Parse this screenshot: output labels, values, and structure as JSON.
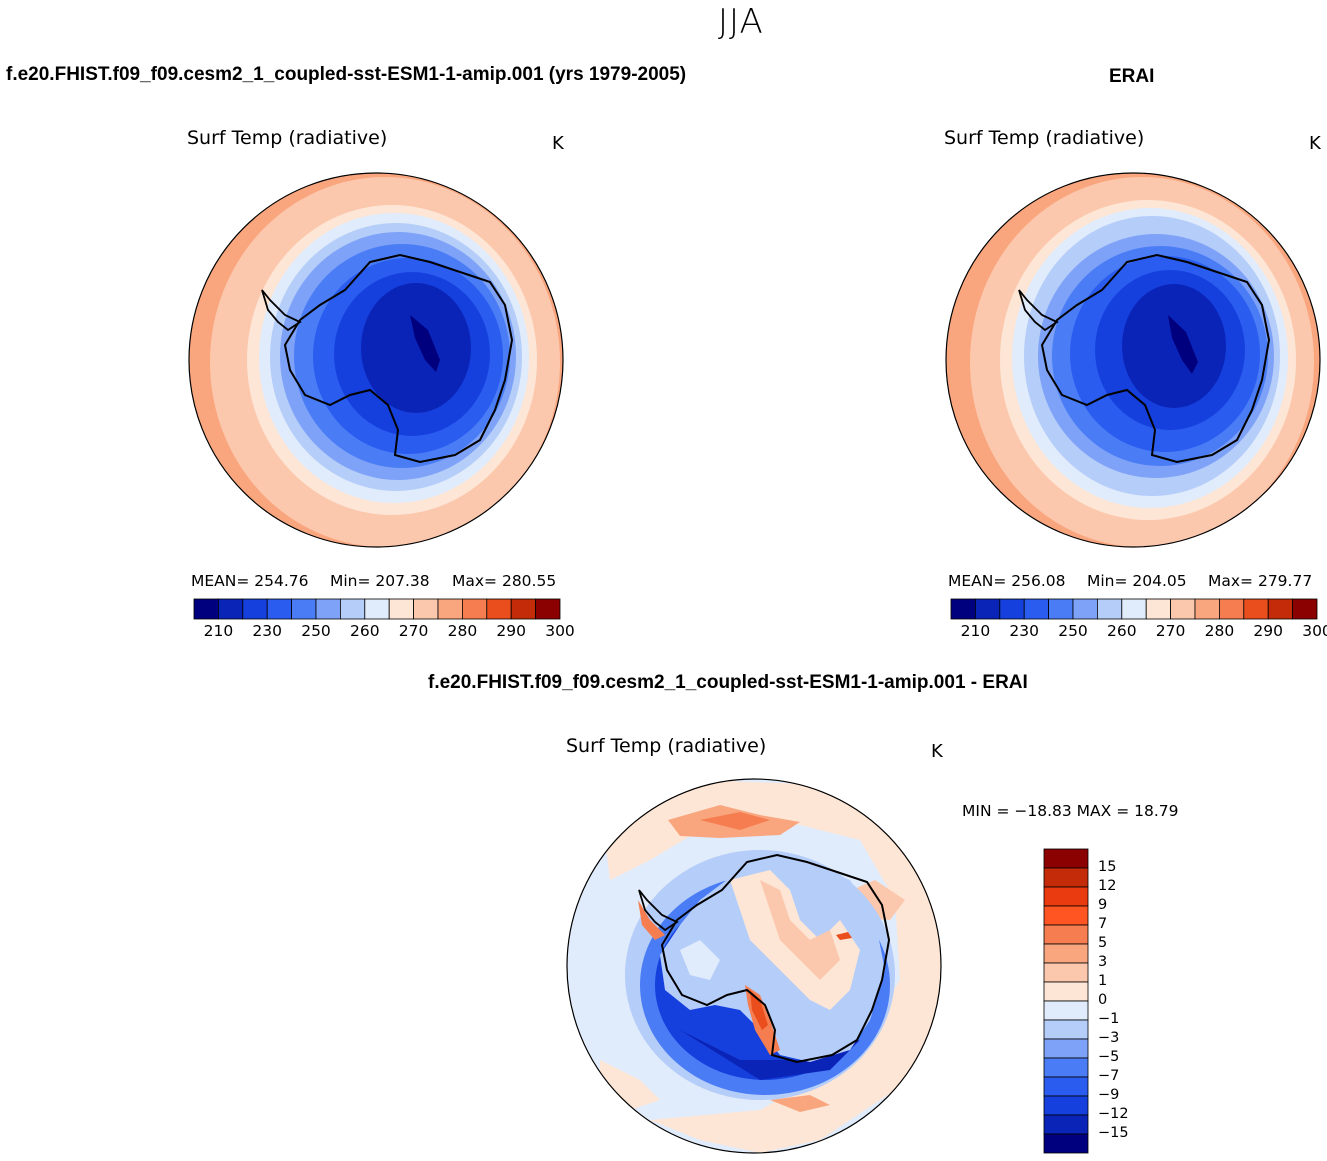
{
  "figure": {
    "season": "JJA"
  },
  "panels": [
    {
      "case_title": "f.e20.FHIST.f09_f09.cesm2_1_coupled-sst-ESM1-1-amip.001 (yrs 1979-2005)",
      "variable": "Surf Temp (radiative)",
      "units": "K",
      "mean_label": "MEAN= 254.76",
      "min_label": "Min= 207.38",
      "max_label": "Max= 280.55"
    },
    {
      "case_title": "ERAI",
      "variable": "Surf Temp (radiative)",
      "units": "K",
      "mean_label": "MEAN= 256.08",
      "min_label": "Min= 204.05",
      "max_label": "Max= 279.77"
    },
    {
      "case_title": "f.e20.FHIST.f09_f09.cesm2_1_coupled-sst-ESM1-1-amip.001 - ERAI",
      "variable": "Surf Temp (radiative)",
      "units": "K",
      "minmax_label": "MIN = −18.83 MAX =  18.79"
    }
  ],
  "abs_colorbar": {
    "tick_labels": [
      "210",
      "230",
      "250",
      "260",
      "270",
      "280",
      "290",
      "300"
    ],
    "colors": [
      "#00007f",
      "#0b24b8",
      "#1540dd",
      "#2a5cf0",
      "#4a7df5",
      "#7ea2f7",
      "#b5cdf9",
      "#e0ebfb",
      "#fde6d6",
      "#fcc8ad",
      "#f9a67f",
      "#f57d4f",
      "#ea4e1c",
      "#c42b09",
      "#8b0000"
    ]
  },
  "diff_colorbar": {
    "levels": [
      "15",
      "12",
      "9",
      "7",
      "5",
      "3",
      "1",
      "0",
      "−1",
      "−3",
      "−5",
      "−7",
      "−9",
      "−12",
      "−15"
    ],
    "colors": [
      "#8b0000",
      "#c42b09",
      "#ea3a10",
      "#ff5522",
      "#f57d4f",
      "#f9a67f",
      "#fcc8ad",
      "#fde6d6",
      "#e0ebfb",
      "#b5cdf9",
      "#7ea2f7",
      "#4a7df5",
      "#2a5cf0",
      "#1540dd",
      "#0b24b8",
      "#00007f"
    ]
  }
}
